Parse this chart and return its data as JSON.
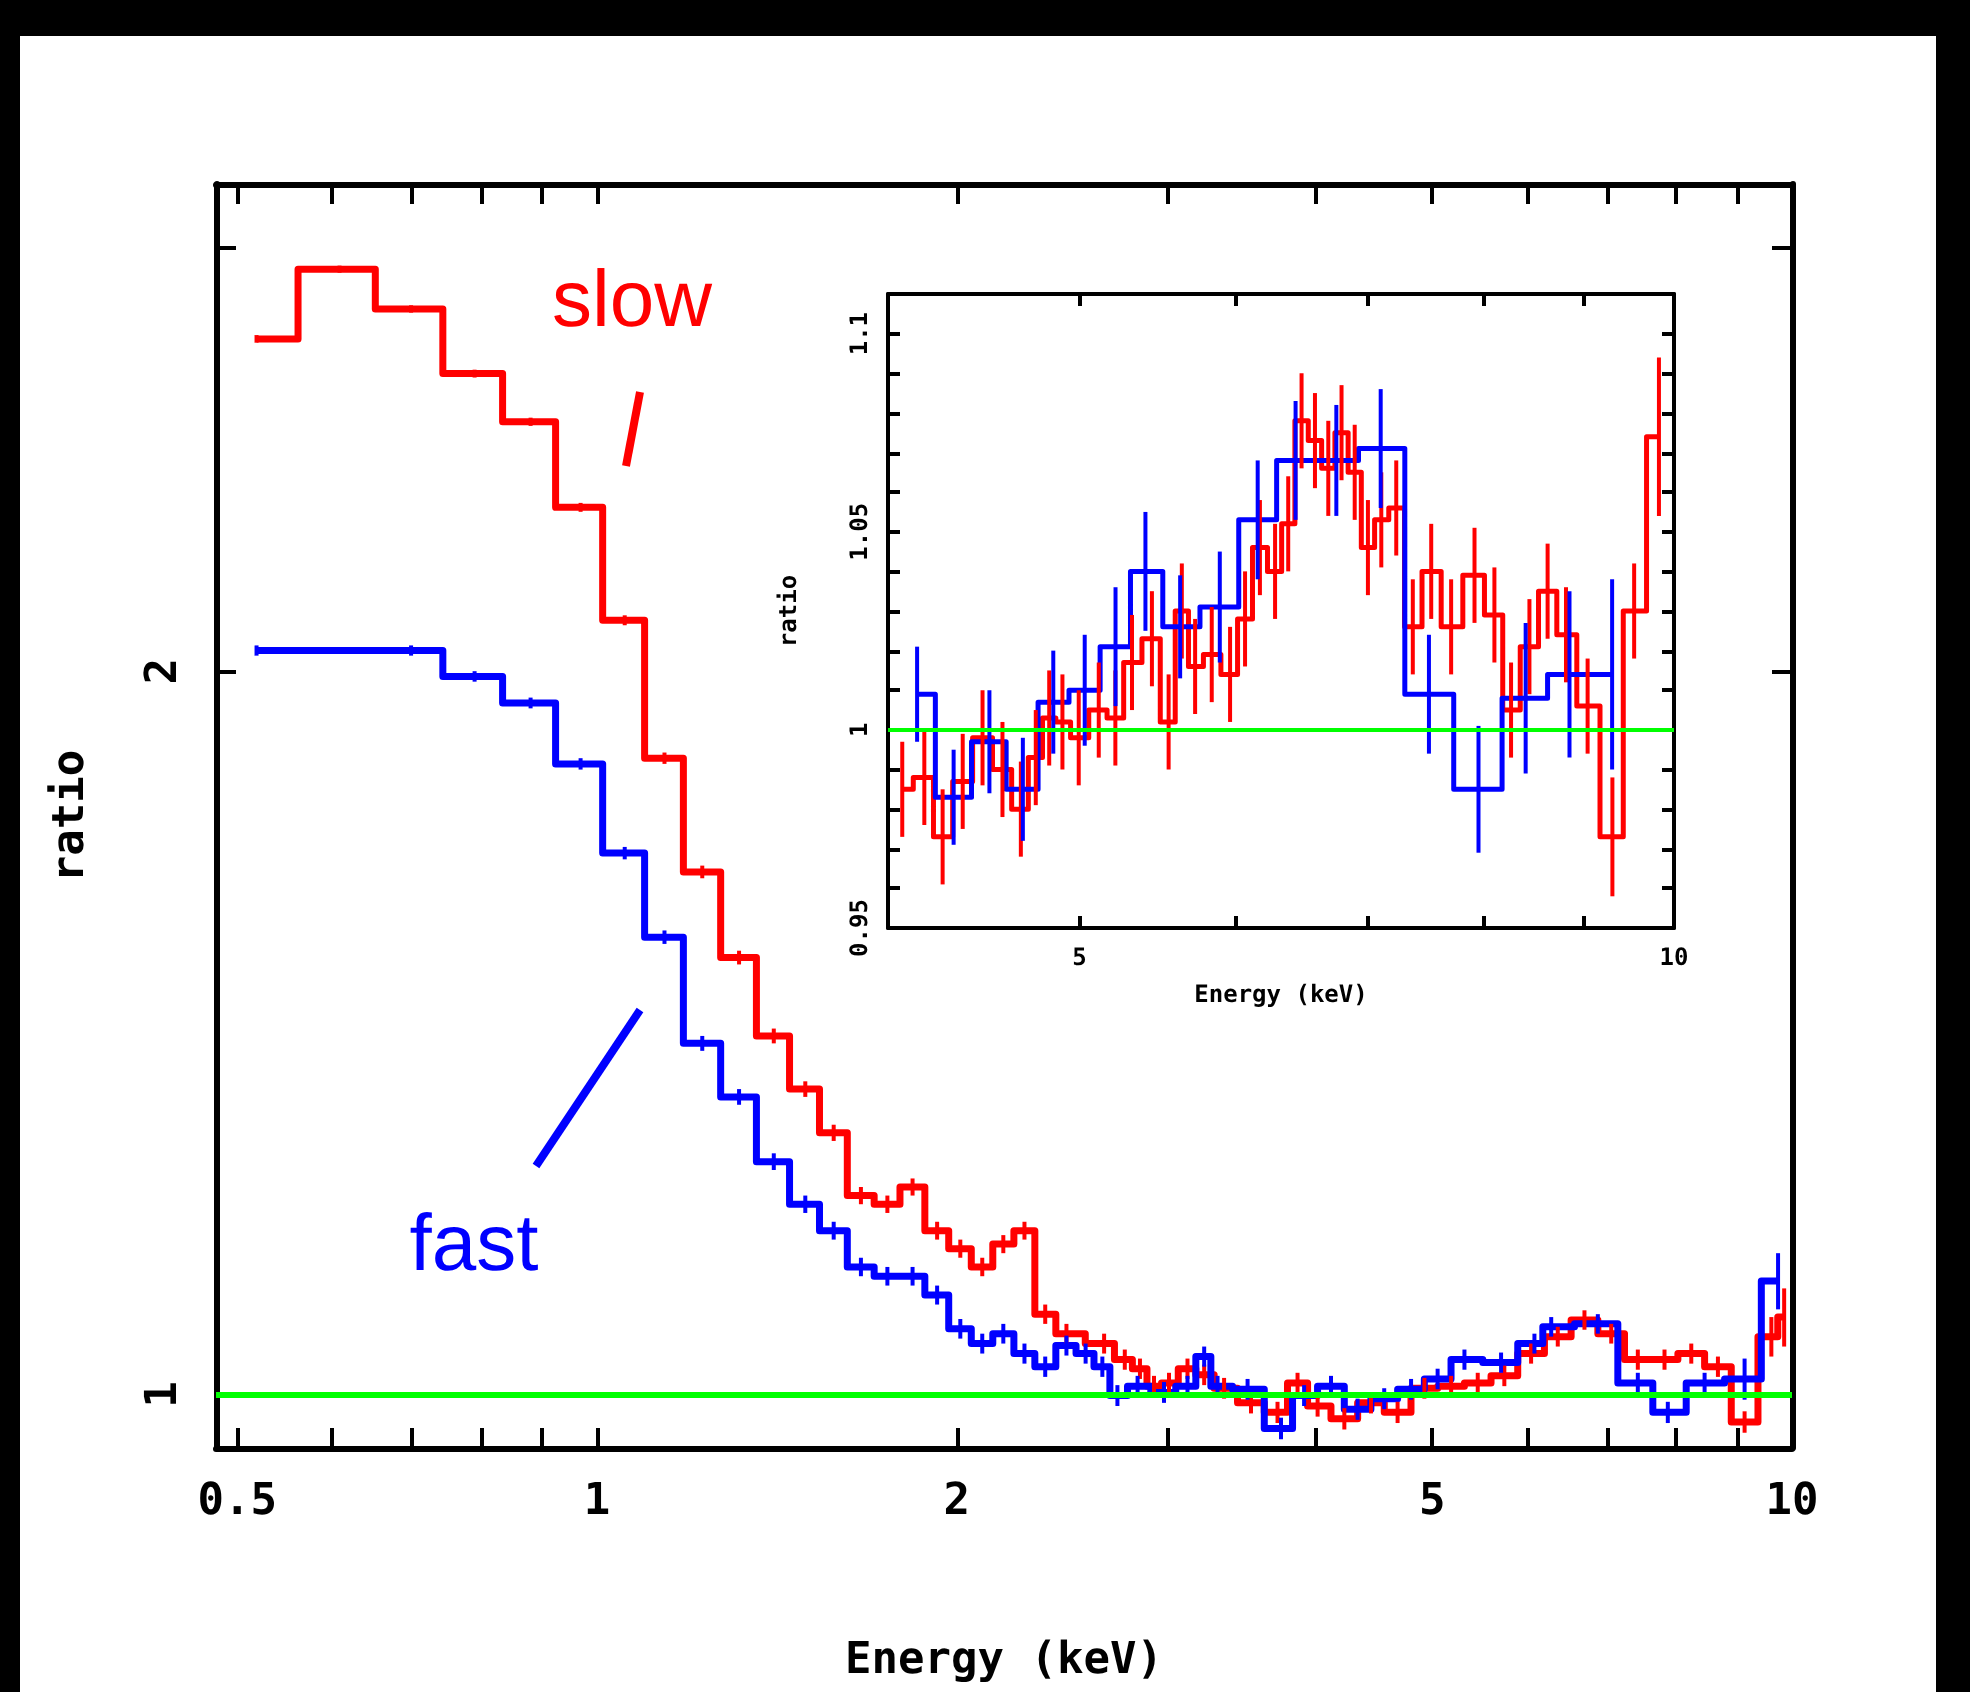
{
  "chart_data": [
    {
      "type": "step",
      "xlabel": "Energy (keV)",
      "ylabel": "ratio",
      "log": "xy",
      "legend": "left",
      "marker": "none",
      "xlim": [
        0.48,
        10
      ],
      "ylim": [
        0.95,
        3.19
      ],
      "xticks": [
        0.5,
        {
          "value": 0.6,
          "label": null
        },
        {
          "value": 0.7,
          "label": null
        },
        {
          "value": 0.8,
          "label": null
        },
        {
          "value": 0.9,
          "label": null
        },
        1,
        2,
        {
          "value": 3,
          "label": null
        },
        {
          "value": 4,
          "label": null
        },
        5,
        {
          "value": 6,
          "label": null
        },
        {
          "value": 7,
          "label": null
        },
        {
          "value": 8,
          "label": null
        },
        {
          "value": 9,
          "label": null
        },
        10
      ],
      "yticks": [
        1,
        2,
        {
          "value": 3,
          "label": null
        }
      ],
      "ref_lines": [
        {
          "axis": "y",
          "value": 1,
          "color": "#00ff00"
        }
      ],
      "series": [
        {
          "name": "slow",
          "color": "#ff0000",
          "x": [
            0.519,
            0.609,
            0.699,
            0.79,
            0.88,
            0.969,
            1.055,
            1.139,
            1.225,
            1.315,
            1.406,
            1.494,
            1.578,
            1.663,
            1.75,
            1.837,
            1.926,
            2.014,
            2.101,
            2.188,
            2.279,
            2.372,
            2.471,
            2.657,
            2.765,
            2.847,
            2.925,
            3.011,
            3.12,
            3.222,
            3.348,
            3.526,
            3.711,
            3.857,
            4.009,
            4.221,
            4.443,
            4.677,
            4.925,
            5.185,
            5.458,
            5.745,
            6.049,
            6.368,
            6.704,
            7.059,
            7.43,
            7.822,
            8.236,
            8.67,
            9.127,
            9.61,
            9.85
          ],
          "values": [
            2.75,
            2.94,
            2.83,
            2.66,
            2.54,
            2.34,
            2.1,
            1.84,
            1.65,
            1.52,
            1.41,
            1.34,
            1.285,
            1.21,
            1.2,
            1.22,
            1.17,
            1.15,
            1.13,
            1.155,
            1.17,
            1.08,
            1.06,
            1.05,
            1.034,
            1.025,
            1.008,
            1.011,
            1.025,
            1.019,
            1.006,
            0.992,
            0.983,
            1.011,
            0.989,
            0.977,
            0.992,
            0.983,
            1.006,
            1.008,
            1.011,
            1.018,
            1.04,
            1.057,
            1.074,
            1.06,
            1.034,
            1.034,
            1.04,
            1.027,
            0.974,
            1.057,
            1.077
          ],
          "errors": [
            0.01,
            0.01,
            0.01,
            0.01,
            0.01,
            0.01,
            0.01,
            0.01,
            0.01,
            0.01,
            0.01,
            0.01,
            0.01,
            0.01,
            0.01,
            0.01,
            0.01,
            0.01,
            0.01,
            0.01,
            0.01,
            0.01,
            0.01,
            0.01,
            0.01,
            0.01,
            0.01,
            0.01,
            0.01,
            0.01,
            0.01,
            0.01,
            0.01,
            0.01,
            0.01,
            0.01,
            0.01,
            0.01,
            0.01,
            0.01,
            0.01,
            0.01,
            0.01,
            0.01,
            0.01,
            0.01,
            0.01,
            0.01,
            0.01,
            0.01,
            0.01,
            0.02,
            0.03
          ]
        },
        {
          "name": "fast",
          "color": "#0000ff",
          "x": [
            0.519,
            0.699,
            0.79,
            0.88,
            0.969,
            1.055,
            1.139,
            1.225,
            1.315,
            1.406,
            1.494,
            1.578,
            1.663,
            1.75,
            1.837,
            1.926,
            2.014,
            2.101,
            2.188,
            2.279,
            2.372,
            2.471,
            2.564,
            2.648,
            2.726,
            2.834,
            2.982,
            3.12,
            3.222,
            3.306,
            3.503,
            3.736,
            3.906,
            4.114,
            4.33,
            4.558,
            4.8,
            5.052,
            5.32,
            5.709,
            6.088,
            6.288,
            6.879,
            7.43,
            7.872,
            8.45,
            9.127,
            9.735
          ],
          "values": [
            2.04,
            2.04,
            1.99,
            1.94,
            1.83,
            1.68,
            1.55,
            1.4,
            1.33,
            1.25,
            1.2,
            1.17,
            1.13,
            1.12,
            1.12,
            1.1,
            1.065,
            1.05,
            1.06,
            1.04,
            1.027,
            1.048,
            1.04,
            1.027,
            0.999,
            1.008,
            1.002,
            1.008,
            1.037,
            1.008,
            1.005,
            0.968,
            0.999,
            1.008,
            0.986,
            0.996,
            1.005,
            1.015,
            1.034,
            1.031,
            1.05,
            1.067,
            1.07,
            1.011,
            0.983,
            1.011,
            1.015,
            1.115
          ],
          "errors": [
            0.01,
            0.01,
            0.01,
            0.01,
            0.01,
            0.01,
            0.01,
            0.01,
            0.01,
            0.01,
            0.01,
            0.01,
            0.01,
            0.01,
            0.01,
            0.01,
            0.01,
            0.01,
            0.01,
            0.01,
            0.01,
            0.01,
            0.01,
            0.01,
            0.01,
            0.01,
            0.01,
            0.01,
            0.01,
            0.01,
            0.01,
            0.01,
            0.01,
            0.01,
            0.01,
            0.01,
            0.01,
            0.01,
            0.01,
            0.01,
            0.01,
            0.01,
            0.01,
            0.01,
            0.01,
            0.01,
            0.02,
            0.03
          ]
        }
      ]
    },
    {
      "type": "step",
      "xlabel": "Energy (keV)",
      "ylabel": "ratio",
      "log": "x",
      "legend": false,
      "marker": "none",
      "xlim": [
        4,
        10
      ],
      "ylim": [
        0.95,
        1.11
      ],
      "xticks": [
        5,
        {
          "value": 6,
          "label": null
        },
        {
          "value": 7,
          "label": null
        },
        {
          "value": 8,
          "label": null
        },
        {
          "value": 9,
          "label": null
        },
        10
      ],
      "yticks": [
        0.95,
        {
          "value": 0.96,
          "label": null
        },
        {
          "value": 0.97,
          "label": null
        },
        {
          "value": 0.98,
          "label": null
        },
        {
          "value": 0.99,
          "label": null
        },
        1,
        {
          "value": 1.01,
          "label": null
        },
        {
          "value": 1.02,
          "label": null
        },
        {
          "value": 1.03,
          "label": null
        },
        {
          "value": 1.04,
          "label": null
        },
        1.05,
        {
          "value": 1.06,
          "label": null
        },
        {
          "value": 1.07,
          "label": null
        },
        {
          "value": 1.08,
          "label": null
        },
        {
          "value": 1.09,
          "label": null
        },
        1.1
      ],
      "ref_lines": [
        {
          "axis": "y",
          "value": 1,
          "color": "#00ff00"
        }
      ],
      "series": [
        {
          "color": "#ff0000",
          "x": [
            4.067,
            4.173,
            4.263,
            4.364,
            4.466,
            4.571,
            4.67,
            4.752,
            4.827,
            4.902,
            4.996,
            5.114,
            5.214,
            5.316,
            5.441,
            5.548,
            5.634,
            5.722,
            5.834,
            5.96,
            6.065,
            6.171,
            6.281,
            6.378,
            6.478,
            6.58,
            6.683,
            6.787,
            6.892,
            6.999,
            7.109,
            7.234,
            7.375,
            7.535,
            7.712,
            7.925,
            8.111,
            8.27,
            8.449,
            8.63,
            8.817,
            9.042,
            9.307,
            9.546,
            9.826
          ],
          "values": [
            0.985,
            0.988,
            0.973,
            0.987,
            0.998,
            0.99,
            0.98,
            0.993,
            1.003,
            1.002,
            0.998,
            1.005,
            1.003,
            1.017,
            1.023,
            1.002,
            1.03,
            1.016,
            1.019,
            1.014,
            1.028,
            1.046,
            1.04,
            1.052,
            1.078,
            1.073,
            1.066,
            1.075,
            1.065,
            1.046,
            1.053,
            1.056,
            1.026,
            1.04,
            1.026,
            1.039,
            1.029,
            1.005,
            1.021,
            1.035,
            1.024,
            1.006,
            0.973,
            1.03,
            1.074
          ],
          "errors": [
            0.012,
            0.012,
            0.012,
            0.012,
            0.012,
            0.012,
            0.012,
            0.012,
            0.012,
            0.012,
            0.012,
            0.012,
            0.012,
            0.012,
            0.012,
            0.012,
            0.012,
            0.012,
            0.012,
            0.012,
            0.012,
            0.012,
            0.012,
            0.012,
            0.012,
            0.012,
            0.012,
            0.012,
            0.012,
            0.012,
            0.012,
            0.012,
            0.012,
            0.012,
            0.012,
            0.012,
            0.012,
            0.012,
            0.012,
            0.012,
            0.012,
            0.012,
            0.015,
            0.012,
            0.02
          ]
        },
        {
          "color": "#0000ff",
          "x": [
            4.138,
            4.318,
            4.502,
            4.681,
            4.85,
            5.031,
            5.215,
            5.4,
            5.623,
            5.889,
            6.155,
            6.433,
            6.746,
            7.104,
            7.515,
            7.962,
            8.412,
            8.853,
            9.304
          ],
          "values": [
            1.009,
            0.983,
            0.997,
            0.985,
            1.007,
            1.01,
            1.021,
            1.04,
            1.026,
            1.031,
            1.053,
            1.068,
            1.068,
            1.071,
            1.009,
            0.985,
            1.008,
            1.014,
            1.014
          ],
          "errors": [
            0.012,
            0.012,
            0.013,
            0.013,
            0.013,
            0.014,
            0.015,
            0.015,
            0.013,
            0.014,
            0.015,
            0.015,
            0.014,
            0.015,
            0.015,
            0.016,
            0.019,
            0.021,
            0.024
          ]
        }
      ]
    }
  ]
}
